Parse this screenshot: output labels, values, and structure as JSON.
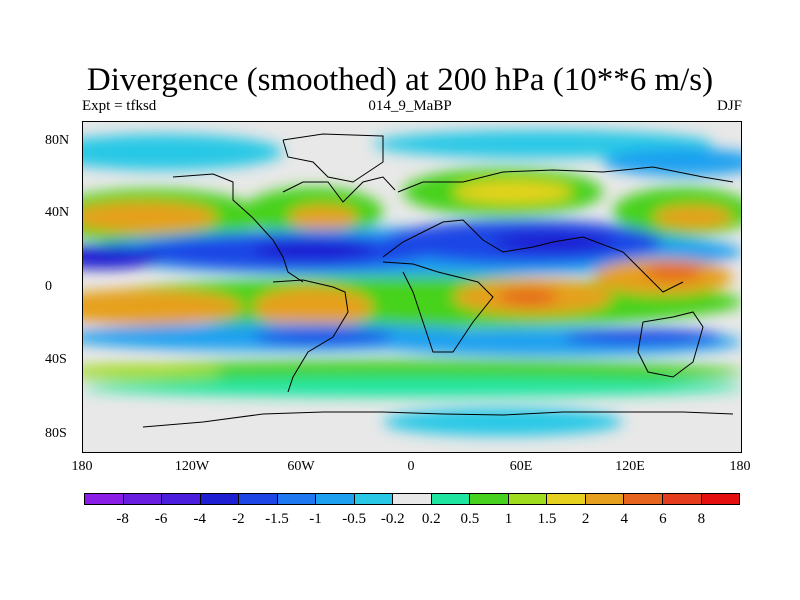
{
  "title": "Divergence (smoothed) at 200 hPa (10**6 m/s)",
  "left_label": "Expt = tfksd",
  "center_label": "014_9_MaBP",
  "right_label": "DJF",
  "y_ticks": [
    "80N",
    "40N",
    "0",
    "40S",
    "80S"
  ],
  "x_ticks": [
    "180",
    "120W",
    "60W",
    "0",
    "60E",
    "120E",
    "180"
  ],
  "colorbar": {
    "labels": [
      "-8",
      "-6",
      "-4",
      "-2",
      "-1.5",
      "-1",
      "-0.5",
      "-0.2",
      "0.2",
      "0.5",
      "1",
      "1.5",
      "2",
      "4",
      "6",
      "8"
    ],
    "colors": [
      "#8a1ee6",
      "#6a1ee0",
      "#4a1edc",
      "#1e1ed2",
      "#1e46e6",
      "#1e78f0",
      "#1ea0f0",
      "#28c8e6",
      "#e8e8e8",
      "#1ee6a0",
      "#46d21e",
      "#a0dc1e",
      "#e6d21e",
      "#e6a01e",
      "#e6641e",
      "#e63c1e",
      "#e60f0f"
    ]
  }
}
